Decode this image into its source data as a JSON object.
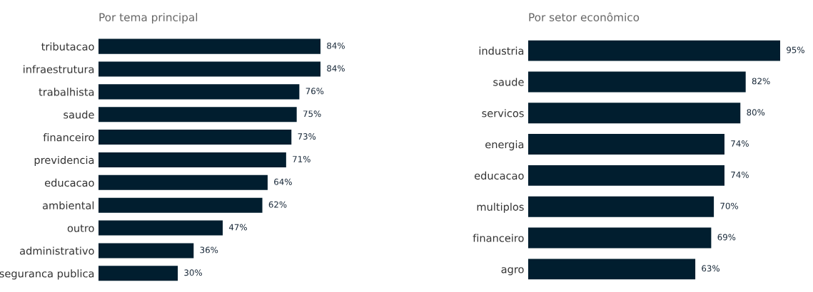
{
  "chart_data": [
    {
      "type": "bar",
      "orientation": "horizontal",
      "title": "Por tema principal",
      "categories": [
        "tributacao",
        "infraestrutura",
        "trabalhista",
        "saude",
        "financeiro",
        "previdencia",
        "educacao",
        "ambiental",
        "outro",
        "administrativo",
        "seguranca publica"
      ],
      "values": [
        84,
        84,
        76,
        75,
        73,
        71,
        64,
        62,
        47,
        36,
        30
      ],
      "value_labels": [
        "84%",
        "84%",
        "76%",
        "75%",
        "73%",
        "71%",
        "64%",
        "62%",
        "47%",
        "36%",
        "30%"
      ],
      "color": "#011e2f",
      "grid": false,
      "tick_labels": "y"
    },
    {
      "type": "bar",
      "orientation": "horizontal",
      "title": "Por setor econômico",
      "categories": [
        "industria",
        "saude",
        "servicos",
        "energia",
        "educacao",
        "multiplos",
        "financeiro",
        "agro"
      ],
      "values": [
        95,
        82,
        80,
        74,
        74,
        70,
        69,
        63
      ],
      "value_labels": [
        "95%",
        "82%",
        "80%",
        "74%",
        "74%",
        "70%",
        "69%",
        "63%"
      ],
      "color": "#011e2f",
      "grid": false,
      "tick_labels": "y"
    }
  ]
}
